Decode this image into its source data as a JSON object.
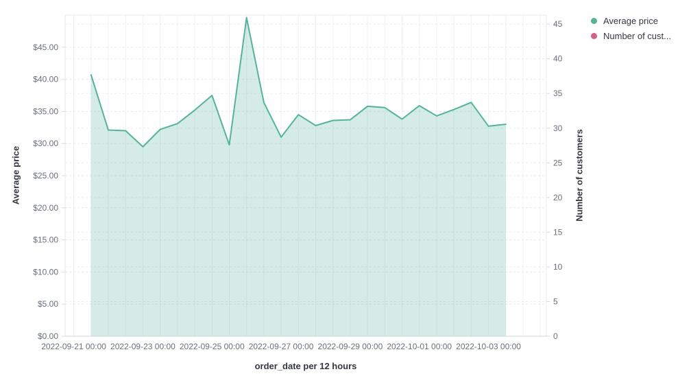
{
  "chart": {
    "legend": [
      {
        "label": "Average price",
        "color": "#54b399"
      },
      {
        "label": "Number of cust...",
        "color": "#d36086"
      }
    ],
    "x_axis": {
      "title": "order_date per 12 hours",
      "tick_labels": [
        "2022-09-21 00:00",
        "2022-09-23 00:00",
        "2022-09-25 00:00",
        "2022-09-27 00:00",
        "2022-09-29 00:00",
        "2022-10-01 00:00",
        "2022-10-03 00:00"
      ]
    },
    "y_axis_left": {
      "title": "Average price",
      "tick_labels": [
        "$0.00",
        "$5.00",
        "$10.00",
        "$15.00",
        "$20.00",
        "$25.00",
        "$30.00",
        "$35.00",
        "$40.00",
        "$45.00"
      ]
    },
    "y_axis_right": {
      "title": "Number of customers",
      "tick_labels": [
        "0",
        "5",
        "10",
        "15",
        "20",
        "25",
        "30",
        "35",
        "40",
        "45"
      ]
    }
  },
  "chart_data": {
    "type": "area",
    "title": "",
    "xlabel": "order_date per 12 hours",
    "ylabel_left": "Average price",
    "ylabel_right": "Number of customers",
    "x_interval": "12 hours",
    "x": [
      "2022-09-21 12:00",
      "2022-09-22 00:00",
      "2022-09-22 12:00",
      "2022-09-23 00:00",
      "2022-09-23 12:00",
      "2022-09-24 00:00",
      "2022-09-24 12:00",
      "2022-09-25 00:00",
      "2022-09-25 12:00",
      "2022-09-26 00:00",
      "2022-09-26 12:00",
      "2022-09-27 00:00",
      "2022-09-27 12:00",
      "2022-09-28 00:00",
      "2022-09-28 12:00",
      "2022-09-29 00:00",
      "2022-09-29 12:00",
      "2022-09-30 00:00",
      "2022-09-30 12:00",
      "2022-10-01 00:00",
      "2022-10-01 12:00",
      "2022-10-02 00:00",
      "2022-10-02 12:00",
      "2022-10-03 00:00",
      "2022-10-03 12:00"
    ],
    "series": [
      {
        "name": "Average price",
        "axis": "left",
        "color": "#54b399",
        "fill": "rgba(84,179,153,0.25)",
        "values": [
          40.7,
          32.1,
          32.0,
          29.5,
          32.2,
          33.1,
          35.2,
          37.5,
          29.8,
          49.6,
          36.4,
          31.0,
          34.5,
          32.8,
          33.6,
          33.7,
          35.8,
          35.6,
          33.8,
          35.9,
          34.3,
          35.3,
          36.4,
          32.7,
          33.0
        ]
      },
      {
        "name": "Number of cust...",
        "axis": "right",
        "color": "#d36086",
        "values": []
      }
    ],
    "axes": {
      "left": {
        "title": "Average price",
        "min": 0,
        "max": 50,
        "tick_step": 5,
        "format": "currency-USD"
      },
      "right": {
        "title": "Number of customers",
        "min": 0,
        "max": 46.3,
        "tick_step": 5
      },
      "x": {
        "title": "order_date per 12 hours",
        "first_tick": "2022-09-21 00:00",
        "tick_every": "2 days"
      }
    },
    "grid": true,
    "gridline_style": {
      "vertical": "solid",
      "horizontal": "dashed"
    },
    "legend_position": "top-right"
  }
}
